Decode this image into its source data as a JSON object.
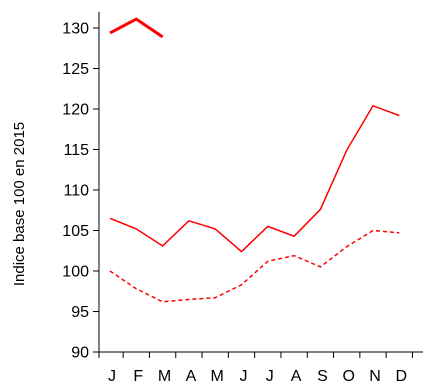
{
  "chart_data": {
    "type": "line",
    "title": "",
    "ylabel": "Indice base 100 en 2015",
    "xlabel": "",
    "categories": [
      "J",
      "F",
      "M",
      "A",
      "M",
      "J",
      "J",
      "A",
      "S",
      "O",
      "N",
      "D"
    ],
    "ylim": [
      90,
      132
    ],
    "yticks": [
      90,
      95,
      100,
      105,
      110,
      115,
      120,
      125,
      130
    ],
    "grid": false,
    "legend": "none",
    "series": [
      {
        "style": "solid-thick",
        "color": "#ff0000",
        "values": [
          129.4,
          131.1,
          128.9,
          null,
          null,
          null,
          null,
          null,
          null,
          null,
          null,
          null
        ]
      },
      {
        "style": "solid",
        "color": "#ff0000",
        "values": [
          106.5,
          105.2,
          103.1,
          106.2,
          105.2,
          102.4,
          105.5,
          104.3,
          107.6,
          114.9,
          120.4,
          119.2
        ]
      },
      {
        "style": "dashed",
        "color": "#ff0000",
        "values": [
          100.0,
          97.8,
          96.2,
          96.5,
          96.7,
          98.3,
          101.2,
          101.9,
          100.5,
          103.0,
          105.0,
          104.7
        ]
      }
    ]
  }
}
